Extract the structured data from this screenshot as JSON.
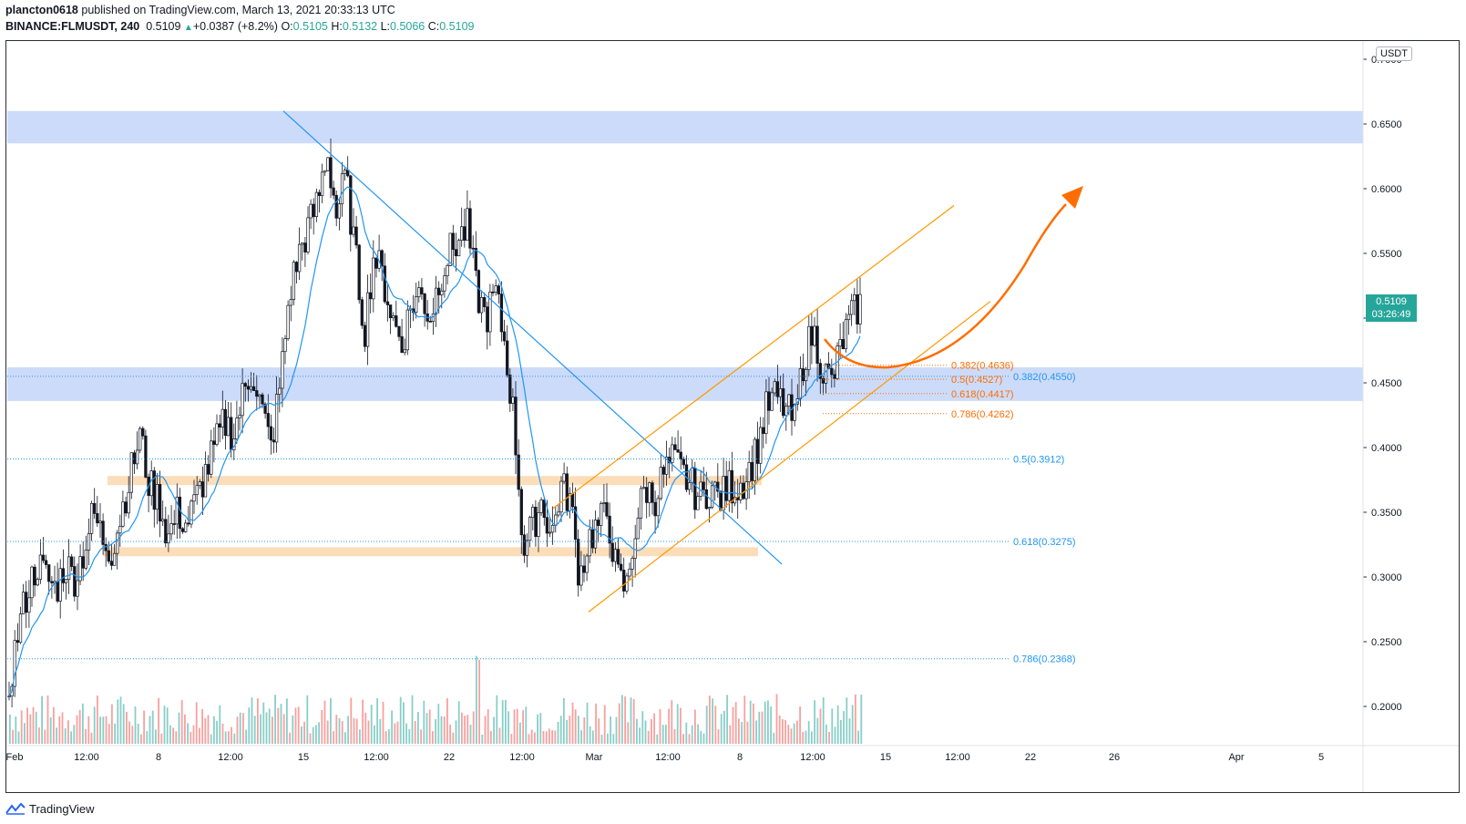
{
  "header": {
    "author": "plancton0618",
    "published_text": "published on TradingView.com, March 13, 2021 20:33:13 UTC",
    "symbol": "BINANCE:FLMUSDT, 240",
    "last": "0.5109",
    "change_arrow": "▲",
    "change": "+0.0387 (+8.2%)",
    "o_label": "O:",
    "o_value": "0.5105",
    "h_label": "H:",
    "h_value": "0.5132",
    "l_label": "L:",
    "l_value": "0.5066",
    "c_label": "C:",
    "c_value": "0.5109"
  },
  "price_scale": {
    "currency": "USDT",
    "current_price": "0.5109",
    "countdown": "03:26:49"
  },
  "footer": {
    "brand": "TradingView",
    "logo_icon": "tradingview-logo-icon"
  },
  "colors": {
    "up": "#26a69a",
    "down": "#ef5350",
    "ma": "#2196f3",
    "zone_blue": "#c9d9f9",
    "zone_orange": "#fbd9b3",
    "channel": "#ff9800",
    "arrow": "#ff6d00",
    "fib_orange": "#ff6d00",
    "fib_blue": "#2196f3"
  },
  "chart_data": {
    "type": "candlestick",
    "title": "BINANCE:FLMUSDT, 240",
    "ylabel": "USDT",
    "ylim": [
      0.15,
      0.7
    ],
    "y_ticks": [
      "0.7000",
      "0.6500",
      "0.6000",
      "0.5500",
      "0.5000",
      "0.4500",
      "0.4000",
      "0.3500",
      "0.3000",
      "0.2500",
      "0.2000"
    ],
    "x_ticks": [
      "Feb",
      "12:00",
      "8",
      "12:00",
      "15",
      "12:00",
      "22",
      "12:00",
      "Mar",
      "12:00",
      "8",
      "12:00",
      "15",
      "12:00",
      "22",
      "26",
      "Apr",
      "5"
    ],
    "close_path": [
      0.215,
      0.26,
      0.29,
      0.31,
      0.3,
      0.29,
      0.31,
      0.3,
      0.32,
      0.35,
      0.33,
      0.32,
      0.35,
      0.38,
      0.41,
      0.37,
      0.36,
      0.33,
      0.35,
      0.34,
      0.36,
      0.38,
      0.4,
      0.42,
      0.41,
      0.44,
      0.46,
      0.43,
      0.4,
      0.45,
      0.52,
      0.55,
      0.57,
      0.59,
      0.63,
      0.58,
      0.61,
      0.55,
      0.49,
      0.55,
      0.53,
      0.5,
      0.48,
      0.51,
      0.52,
      0.5,
      0.53,
      0.55,
      0.56,
      0.57,
      0.52,
      0.5,
      0.52,
      0.48,
      0.42,
      0.32,
      0.34,
      0.36,
      0.33,
      0.37,
      0.36,
      0.3,
      0.33,
      0.34,
      0.35,
      0.3,
      0.29,
      0.34,
      0.37,
      0.36,
      0.38,
      0.39,
      0.38,
      0.37,
      0.36,
      0.37,
      0.36,
      0.37,
      0.37,
      0.38,
      0.4,
      0.43,
      0.44,
      0.43,
      0.42,
      0.47,
      0.49,
      0.46,
      0.45,
      0.48,
      0.5,
      0.511
    ],
    "zones": [
      {
        "name": "resistance-zone",
        "from": 0.635,
        "to": 0.66
      },
      {
        "name": "support-zone-blue",
        "from": 0.436,
        "to": 0.462
      },
      {
        "name": "support-zone-orange-1",
        "from": 0.371,
        "to": 0.378
      },
      {
        "name": "support-zone-orange-2",
        "from": 0.316,
        "to": 0.323
      }
    ],
    "fib_retracement_large": [
      {
        "label": "0.382(0.4550)",
        "value": 0.455
      },
      {
        "label": "0.5(0.3912)",
        "value": 0.3912
      },
      {
        "label": "0.618(0.3275)",
        "value": 0.3275
      },
      {
        "label": "0.786(0.2368)",
        "value": 0.2368
      }
    ],
    "fib_retracement_small": [
      {
        "label": "0.382(0.4636)",
        "value": 0.4636
      },
      {
        "label": "0.5(0.4527)",
        "value": 0.4527
      },
      {
        "label": "0.618(0.4417)",
        "value": 0.4417
      },
      {
        "label": "0.786(0.4262)",
        "value": 0.4262
      }
    ],
    "trendline": {
      "from_price": 0.66,
      "to_price": 0.31
    },
    "channel": {
      "lower_from": 0.273,
      "lower_to": 0.513,
      "upper_from": 0.353,
      "upper_to": 0.587
    },
    "projection_target": 0.6
  }
}
